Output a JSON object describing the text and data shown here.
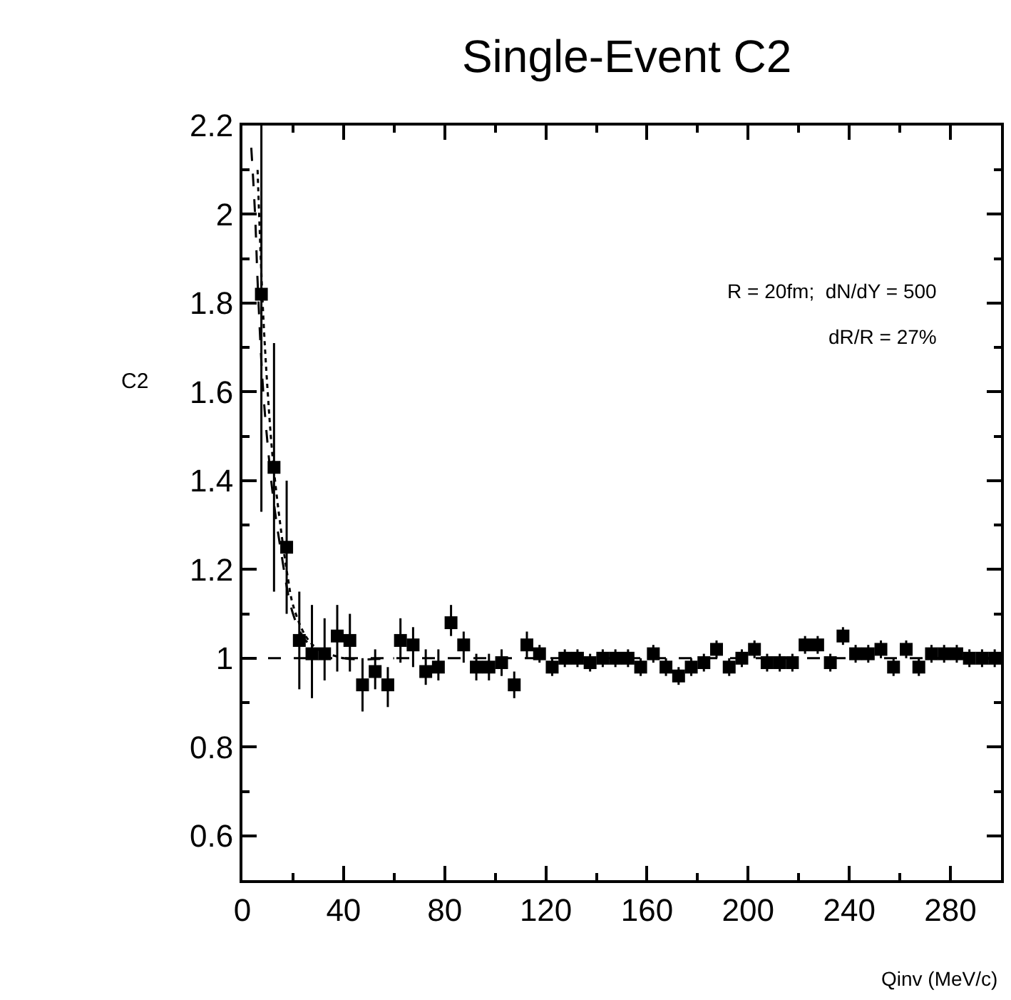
{
  "chart_data": {
    "type": "scatter",
    "title": "Single-Event C2",
    "xlabel": "Qinv (MeV/c)",
    "ylabel": "C2",
    "annotations": [
      "R = 20fm;  dN/dY = 500",
      "dR/R = 27%"
    ],
    "xlim": [
      0,
      300
    ],
    "xticks": [
      0,
      40,
      80,
      120,
      160,
      200,
      240,
      280
    ],
    "ylim": [
      0.5,
      2.2
    ],
    "yticks": [
      0.6,
      0.8,
      1,
      1.2,
      1.4,
      1.6,
      1.8,
      2,
      2.2
    ],
    "grid": false,
    "legend": false,
    "marker": "square",
    "ref_lines": [
      {
        "axis": "y",
        "value": 1,
        "line_style": "dashed",
        "color": "#000000"
      }
    ],
    "series": [
      {
        "color": "#000000",
        "x": [
          7.5,
          12.5,
          17.5,
          22.5,
          27.5,
          32.5,
          37.5,
          42.5,
          47.5,
          52.5,
          57.5,
          62.5,
          67.5,
          72.5,
          77.5,
          82.5,
          87.5,
          92.5,
          97.5,
          102.5,
          107.5,
          112.5,
          117.5,
          122.5,
          127.5,
          132.5,
          137.5,
          142.5,
          147.5,
          152.5,
          157.5,
          162.5,
          167.5,
          172.5,
          177.5,
          182.5,
          187.5,
          192.5,
          197.5,
          202.5,
          207.5,
          212.5,
          217.5,
          222.5,
          227.5,
          232.5,
          237.5,
          242.5,
          247.5,
          252.5,
          257.5,
          262.5,
          267.5,
          272.5,
          277.5,
          282.5,
          287.5,
          292.5,
          297.5
        ],
        "values": [
          1.82,
          1.43,
          1.25,
          1.04,
          1.01,
          1.01,
          1.05,
          1.04,
          0.94,
          0.97,
          0.94,
          1.04,
          1.03,
          0.97,
          0.98,
          1.08,
          1.03,
          0.98,
          0.98,
          0.99,
          0.94,
          1.03,
          1.01,
          0.98,
          1.0,
          1.0,
          0.99,
          1.0,
          1.0,
          1.0,
          0.98,
          1.01,
          0.98,
          0.96,
          0.98,
          0.99,
          1.02,
          0.98,
          1.0,
          1.02,
          0.99,
          0.99,
          0.99,
          1.03,
          1.03,
          0.99,
          1.05,
          1.01,
          1.01,
          1.02,
          0.98,
          1.02,
          0.98,
          1.01,
          1.01,
          1.01,
          1.0,
          1.0,
          1.0
        ],
        "errors": [
          [
            1.33,
            2.2
          ],
          [
            1.15,
            1.71
          ],
          [
            1.1,
            1.4
          ],
          [
            0.93,
            1.15
          ],
          [
            0.91,
            1.12
          ],
          [
            0.95,
            1.09
          ],
          [
            0.97,
            1.12
          ],
          [
            0.97,
            1.1
          ],
          [
            0.88,
            1.0
          ],
          [
            0.93,
            1.02
          ],
          [
            0.89,
            0.98
          ],
          [
            0.99,
            1.09
          ],
          [
            0.98,
            1.07
          ],
          [
            0.94,
            1.02
          ],
          [
            0.95,
            1.02
          ],
          [
            1.05,
            1.12
          ],
          [
            0.99,
            1.06
          ],
          0.03,
          0.03,
          0.03,
          0.03,
          0.03,
          0.02,
          0.02,
          0.02,
          0.02,
          0.02,
          0.02,
          0.02,
          0.02,
          0.02,
          0.02,
          0.02,
          0.02,
          0.02,
          0.02,
          0.02,
          0.02,
          0.02,
          0.02,
          0.02,
          0.02,
          0.02,
          0.02,
          0.02,
          0.02,
          0.02,
          0.02,
          0.02,
          0.02,
          0.02,
          0.02,
          0.02,
          0.02,
          0.02,
          0.02,
          0.02,
          0.02,
          0.02
        ]
      },
      {
        "type": "line",
        "color": "#000000",
        "line_style": "dashed",
        "marker": "none",
        "x": [
          3.5,
          5,
          6,
          8,
          10,
          12,
          15,
          20,
          25,
          30,
          40,
          60
        ],
        "values": [
          2.15,
          2.0,
          1.85,
          1.62,
          1.48,
          1.37,
          1.25,
          1.1,
          1.04,
          1.02,
          1.0,
          1.0
        ]
      },
      {
        "type": "line",
        "color": "#000000",
        "line_style": "dotted",
        "marker": "none",
        "x": [
          6,
          8,
          10,
          12,
          15,
          18,
          20,
          25,
          30,
          40
        ],
        "values": [
          2.1,
          1.8,
          1.6,
          1.45,
          1.3,
          1.18,
          1.12,
          1.05,
          1.02,
          1.0
        ]
      }
    ]
  }
}
